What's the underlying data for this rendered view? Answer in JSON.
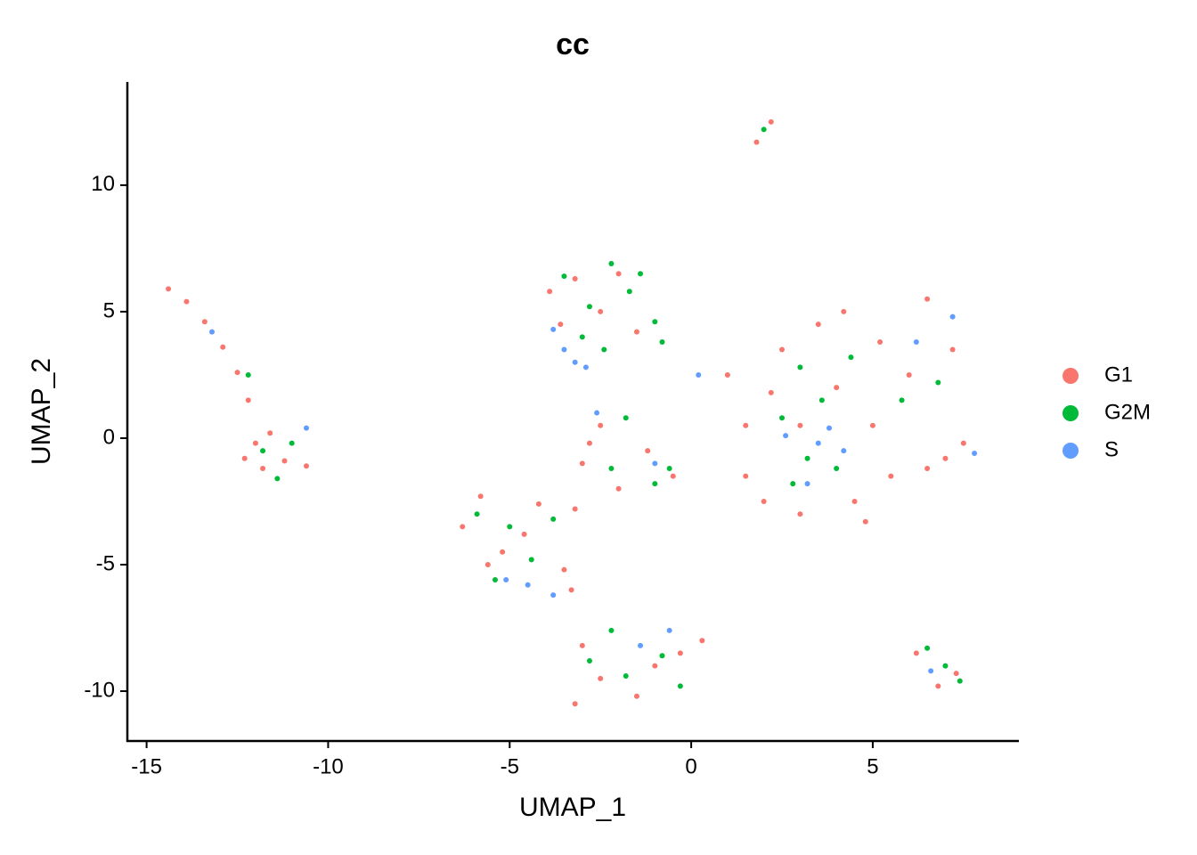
{
  "chart_data": {
    "type": "scatter",
    "title": "cc",
    "x_label": "UMAP_1",
    "y_label": "UMAP_2",
    "xlim": [
      -15.53,
      9.0
    ],
    "ylim": [
      -11.97,
      14.08
    ],
    "xticks": [
      -15,
      -10,
      -5,
      0,
      5
    ],
    "yticks": [
      -10,
      -5,
      0,
      5,
      10
    ],
    "grid": false,
    "legend": "right",
    "series": [
      {
        "name": "G1",
        "color": "#F8766D",
        "x": [
          -14.4,
          -13.9,
          -13.4,
          -12.9,
          -12.5,
          -12.2,
          -12.3,
          -11.8,
          -11.2,
          -10.6,
          -11.6,
          -12.0,
          1.8,
          2.2,
          -3.9,
          -3.2,
          -2.5,
          -1.5,
          -3.6,
          -2.0,
          -3.0,
          -2.5,
          -2.0,
          -3.2,
          -1.2,
          -0.5,
          -2.8,
          -6.3,
          -5.8,
          -5.2,
          -4.6,
          -3.5,
          -3.3,
          -5.6,
          -4.2,
          -3.2,
          -2.5,
          -1.5,
          -0.3,
          0.3,
          -3.0,
          -1.0,
          1.0,
          1.5,
          2.0,
          2.5,
          3.0,
          3.5,
          4.0,
          4.5,
          5.0,
          5.5,
          6.0,
          6.5,
          7.0,
          7.5,
          7.2,
          6.5,
          3.0,
          2.2,
          4.2,
          1.5,
          5.2,
          4.8,
          6.2,
          6.8,
          7.3
        ],
        "y": [
          5.9,
          5.4,
          4.6,
          3.6,
          2.6,
          1.5,
          -0.8,
          -1.2,
          -0.9,
          -1.1,
          0.2,
          -0.2,
          11.7,
          12.5,
          5.8,
          6.3,
          5.0,
          4.2,
          4.5,
          6.5,
          -1.0,
          0.5,
          -2.0,
          -2.8,
          -0.5,
          -1.5,
          -0.2,
          -3.5,
          -2.3,
          -4.5,
          -3.8,
          -5.2,
          -6.0,
          -5.0,
          -2.6,
          -10.5,
          -9.5,
          -10.2,
          -8.5,
          -8.0,
          -8.2,
          -9.0,
          2.5,
          0.5,
          -2.5,
          3.5,
          -3.0,
          4.5,
          2.0,
          -2.5,
          0.5,
          -1.5,
          2.5,
          -1.2,
          -0.8,
          -0.2,
          3.5,
          5.5,
          0.5,
          1.8,
          5.0,
          -1.5,
          3.8,
          -3.3,
          -8.5,
          -9.8,
          -9.3
        ]
      },
      {
        "name": "G2M",
        "color": "#00BA38",
        "x": [
          -12.2,
          -11.8,
          -11.0,
          -11.4,
          2.0,
          -3.5,
          -2.8,
          -2.2,
          -1.7,
          -1.0,
          -3.0,
          -2.4,
          -1.4,
          -0.8,
          -1.0,
          -0.6,
          -2.2,
          -1.8,
          -5.9,
          -5.0,
          -4.4,
          -3.8,
          -5.4,
          -2.8,
          -1.8,
          -0.8,
          -2.2,
          -0.3,
          2.5,
          3.2,
          3.6,
          4.0,
          3.0,
          5.8,
          6.8,
          4.4,
          2.8,
          6.5,
          7.0,
          7.4
        ],
        "y": [
          2.5,
          -0.5,
          -0.2,
          -1.6,
          12.2,
          6.4,
          5.2,
          6.9,
          5.8,
          4.6,
          4.0,
          3.5,
          6.5,
          3.8,
          -1.8,
          -1.2,
          -1.2,
          0.8,
          -3.0,
          -3.5,
          -4.8,
          -3.2,
          -5.6,
          -8.8,
          -9.4,
          -8.6,
          -7.6,
          -9.8,
          0.8,
          -0.8,
          1.5,
          -1.2,
          2.8,
          1.5,
          2.2,
          3.2,
          -1.8,
          -8.3,
          -9.0,
          -9.6
        ]
      },
      {
        "name": "S",
        "color": "#619CFF",
        "x": [
          -13.2,
          -10.6,
          -3.8,
          -3.5,
          -3.2,
          -2.9,
          -1.0,
          -2.6,
          0.2,
          -4.5,
          -3.8,
          -5.1,
          -1.4,
          -0.6,
          3.5,
          3.8,
          4.2,
          2.6,
          6.2,
          7.2,
          3.2,
          7.8,
          6.6
        ],
        "y": [
          4.2,
          0.4,
          4.3,
          3.5,
          3.0,
          2.8,
          -1.0,
          1.0,
          2.5,
          -5.8,
          -6.2,
          -5.6,
          -8.2,
          -7.6,
          -0.2,
          0.4,
          -0.5,
          0.1,
          3.8,
          4.8,
          -1.8,
          -0.6,
          -9.2
        ]
      }
    ]
  }
}
